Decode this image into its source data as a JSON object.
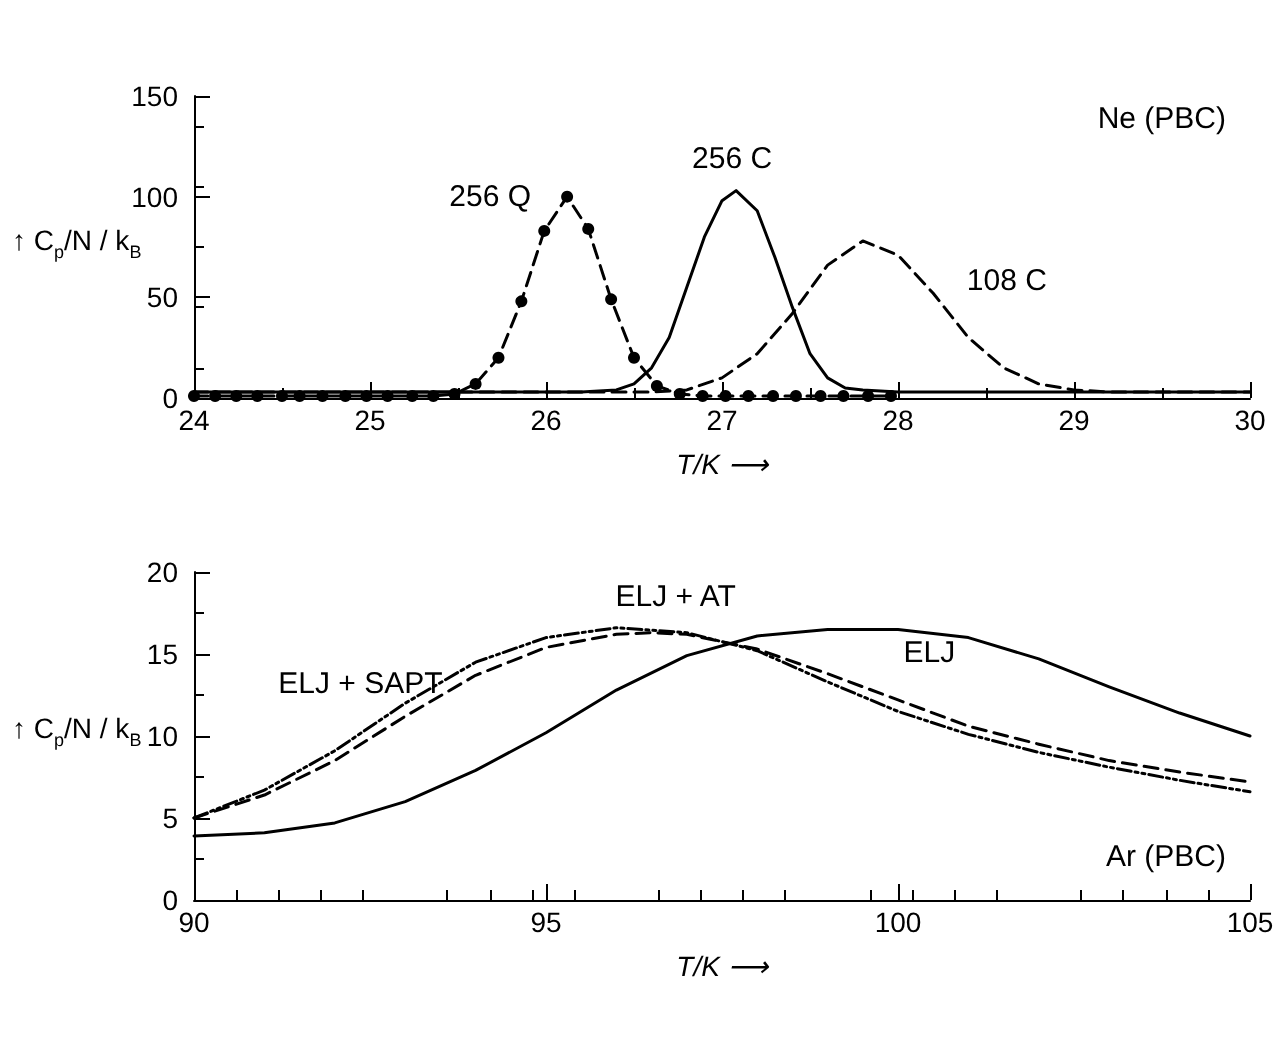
{
  "chart_data": [
    {
      "type": "line",
      "xlabel": "T/K ⟶",
      "ylabel": "↑ C$_{p}$/N / k$_{B}$",
      "xlim": [
        24,
        30
      ],
      "xticks": [
        24,
        25,
        26,
        27,
        28,
        29,
        30
      ],
      "ylim": [
        0,
        150
      ],
      "yticks": [
        0,
        50,
        100,
        150
      ],
      "grid": false,
      "annotations": [
        "Ne (PBC)"
      ],
      "series": [
        {
          "name": "256 Q",
          "color": "#000000",
          "line_style": "dashed",
          "marker": "circle",
          "x": [
            24.0,
            24.12,
            24.24,
            24.36,
            24.5,
            24.6,
            24.73,
            24.86,
            24.98,
            25.1,
            25.24,
            25.36,
            25.48,
            25.6,
            25.73,
            25.86,
            25.99,
            26.12,
            26.24,
            26.37,
            26.5,
            26.63,
            26.76,
            26.89,
            27.02,
            27.15,
            27.29,
            27.42,
            27.56,
            27.69,
            27.83,
            27.96
          ],
          "values": [
            1,
            1,
            1,
            1,
            1,
            1,
            1,
            1,
            1,
            1,
            1,
            1,
            2,
            7,
            20,
            48,
            83,
            100,
            84,
            49,
            20,
            6,
            2,
            1,
            1,
            1,
            1,
            1,
            1,
            1,
            1,
            1
          ]
        },
        {
          "name": "256 C",
          "color": "#000000",
          "line_style": "solid",
          "marker": "none",
          "x": [
            24,
            26.2,
            26.4,
            26.5,
            26.6,
            26.7,
            26.8,
            26.9,
            27.0,
            27.08,
            27.2,
            27.3,
            27.4,
            27.5,
            27.6,
            27.7,
            27.8,
            28,
            30
          ],
          "values": [
            3,
            3,
            4,
            7,
            15,
            30,
            55,
            80,
            98,
            103,
            93,
            70,
            45,
            22,
            10,
            5,
            4,
            3,
            3
          ]
        },
        {
          "name": "108 C",
          "color": "#000000",
          "line_style": "dashed",
          "marker": "none",
          "x": [
            24,
            26.6,
            26.8,
            27.0,
            27.2,
            27.4,
            27.6,
            27.8,
            28.0,
            28.2,
            28.4,
            28.6,
            28.8,
            29.0,
            29.2,
            30
          ],
          "values": [
            3,
            3,
            4,
            10,
            22,
            42,
            66,
            78,
            71,
            52,
            30,
            15,
            7,
            4,
            3,
            3
          ]
        }
      ]
    },
    {
      "type": "line",
      "xlabel": "T/K ⟶",
      "ylabel": "↑ C$_{p}$/N / k$_{B}$",
      "xlim": [
        90,
        105
      ],
      "xticks": [
        90,
        95,
        100,
        105
      ],
      "ylim": [
        0,
        20
      ],
      "yticks": [
        0,
        5,
        10,
        15,
        20
      ],
      "grid": false,
      "annotations": [
        "Ar (PBC)"
      ],
      "series": [
        {
          "name": "ELJ",
          "color": "#000000",
          "line_style": "solid",
          "marker": "none",
          "x": [
            90,
            91,
            92,
            93,
            94,
            95,
            96,
            97,
            98,
            99,
            100,
            101,
            102,
            103,
            104,
            105
          ],
          "values": [
            3.9,
            4.1,
            4.7,
            6,
            7.9,
            10.2,
            12.8,
            14.9,
            16.1,
            16.5,
            16.5,
            16,
            14.7,
            13,
            11.4,
            10
          ]
        },
        {
          "name": "ELJ + AT",
          "color": "#000000",
          "line_style": "dashed",
          "marker": "none",
          "x": [
            90,
            91,
            92,
            93,
            94,
            95,
            96,
            96.5,
            97,
            98,
            99,
            100,
            101,
            102,
            103,
            104,
            105
          ],
          "values": [
            5,
            6.4,
            8.5,
            11.2,
            13.7,
            15.4,
            16.2,
            16.3,
            16.2,
            15.3,
            13.8,
            12.2,
            10.6,
            9.5,
            8.5,
            7.8,
            7.2
          ]
        },
        {
          "name": "ELJ + SAPT",
          "color": "#000000",
          "line_style": "dotted",
          "marker": "none",
          "x": [
            90,
            91,
            92,
            93,
            94,
            95,
            96,
            97,
            98,
            99,
            100,
            101,
            102,
            103,
            104,
            105
          ],
          "values": [
            5,
            6.7,
            9.1,
            12,
            14.5,
            16,
            16.6,
            16.3,
            15.2,
            13.3,
            11.5,
            10.1,
            9,
            8.1,
            7.3,
            6.6
          ]
        }
      ]
    }
  ]
}
